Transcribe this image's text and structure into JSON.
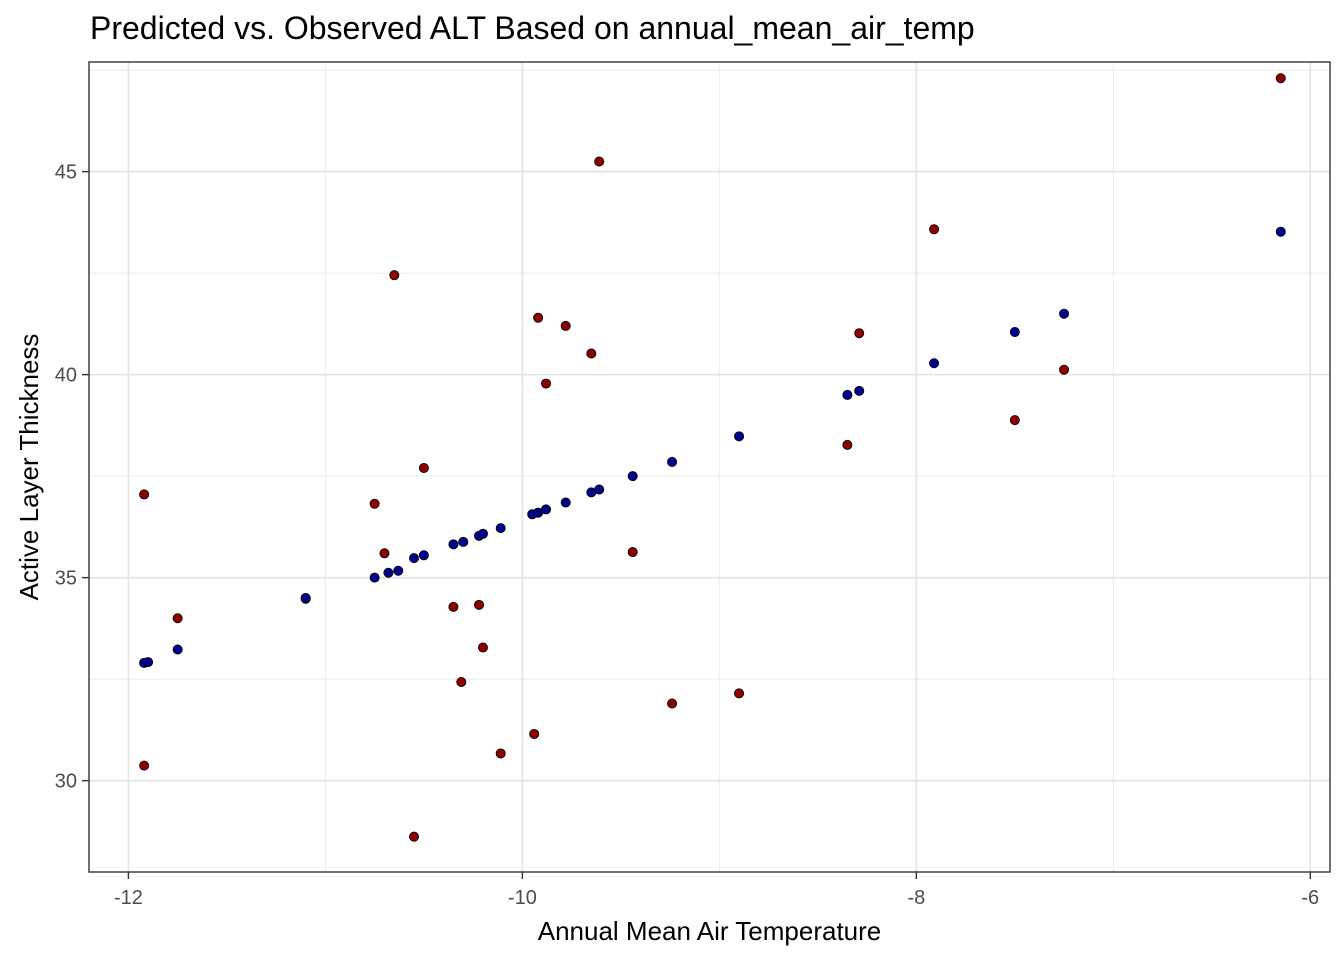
{
  "chart_data": {
    "type": "scatter",
    "title": "Predicted vs. Observed ALT Based on annual_mean_air_temp",
    "xlabel": "Annual Mean Air Temperature",
    "ylabel": "Active Layer Thickness",
    "xlim": [
      -12.2,
      -5.9
    ],
    "ylim": [
      27.75,
      47.7
    ],
    "x_ticks": [
      -12,
      -10,
      -8,
      -6
    ],
    "x_tick_labels": [
      "-12",
      "-10",
      "-8",
      "-6"
    ],
    "y_ticks": [
      30,
      35,
      40,
      45
    ],
    "y_tick_labels": [
      "30",
      "35",
      "40",
      "45"
    ],
    "grid": true,
    "legend": "none",
    "series": [
      {
        "color": "#8b0000",
        "points": [
          [
            -11.92,
            37.05
          ],
          [
            -11.92,
            30.37
          ],
          [
            -11.75,
            34.0
          ],
          [
            -11.1,
            34.48
          ],
          [
            -10.75,
            36.82
          ],
          [
            -10.7,
            35.6
          ],
          [
            -10.65,
            42.45
          ],
          [
            -10.5,
            37.7
          ],
          [
            -10.55,
            28.62
          ],
          [
            -10.35,
            34.28
          ],
          [
            -10.31,
            32.43
          ],
          [
            -10.22,
            34.33
          ],
          [
            -10.2,
            33.28
          ],
          [
            -10.11,
            30.67
          ],
          [
            -9.94,
            31.15
          ],
          [
            -9.92,
            41.4
          ],
          [
            -9.88,
            39.78
          ],
          [
            -9.78,
            41.2
          ],
          [
            -9.65,
            40.52
          ],
          [
            -9.61,
            45.25
          ],
          [
            -9.44,
            35.63
          ],
          [
            -9.24,
            31.9
          ],
          [
            -8.9,
            32.15
          ],
          [
            -8.35,
            38.27
          ],
          [
            -8.29,
            41.02
          ],
          [
            -7.91,
            43.58
          ],
          [
            -7.5,
            38.88
          ],
          [
            -7.25,
            40.12
          ],
          [
            -6.15,
            47.3
          ]
        ]
      },
      {
        "color": "#00008b",
        "points": [
          [
            -11.92,
            32.9
          ],
          [
            -11.9,
            32.92
          ],
          [
            -11.75,
            33.23
          ],
          [
            -11.1,
            34.5
          ],
          [
            -10.75,
            35.0
          ],
          [
            -10.68,
            35.12
          ],
          [
            -10.63,
            35.17
          ],
          [
            -10.55,
            35.48
          ],
          [
            -10.5,
            35.55
          ],
          [
            -10.35,
            35.82
          ],
          [
            -10.3,
            35.88
          ],
          [
            -10.22,
            36.03
          ],
          [
            -10.2,
            36.08
          ],
          [
            -10.11,
            36.22
          ],
          [
            -9.95,
            36.56
          ],
          [
            -9.92,
            36.6
          ],
          [
            -9.88,
            36.68
          ],
          [
            -9.78,
            36.85
          ],
          [
            -9.65,
            37.1
          ],
          [
            -9.61,
            37.17
          ],
          [
            -9.44,
            37.5
          ],
          [
            -9.24,
            37.85
          ],
          [
            -8.9,
            38.48
          ],
          [
            -8.35,
            39.5
          ],
          [
            -8.29,
            39.6
          ],
          [
            -7.91,
            40.28
          ],
          [
            -7.5,
            41.05
          ],
          [
            -7.25,
            41.5
          ],
          [
            -6.15,
            43.52
          ]
        ]
      }
    ]
  }
}
